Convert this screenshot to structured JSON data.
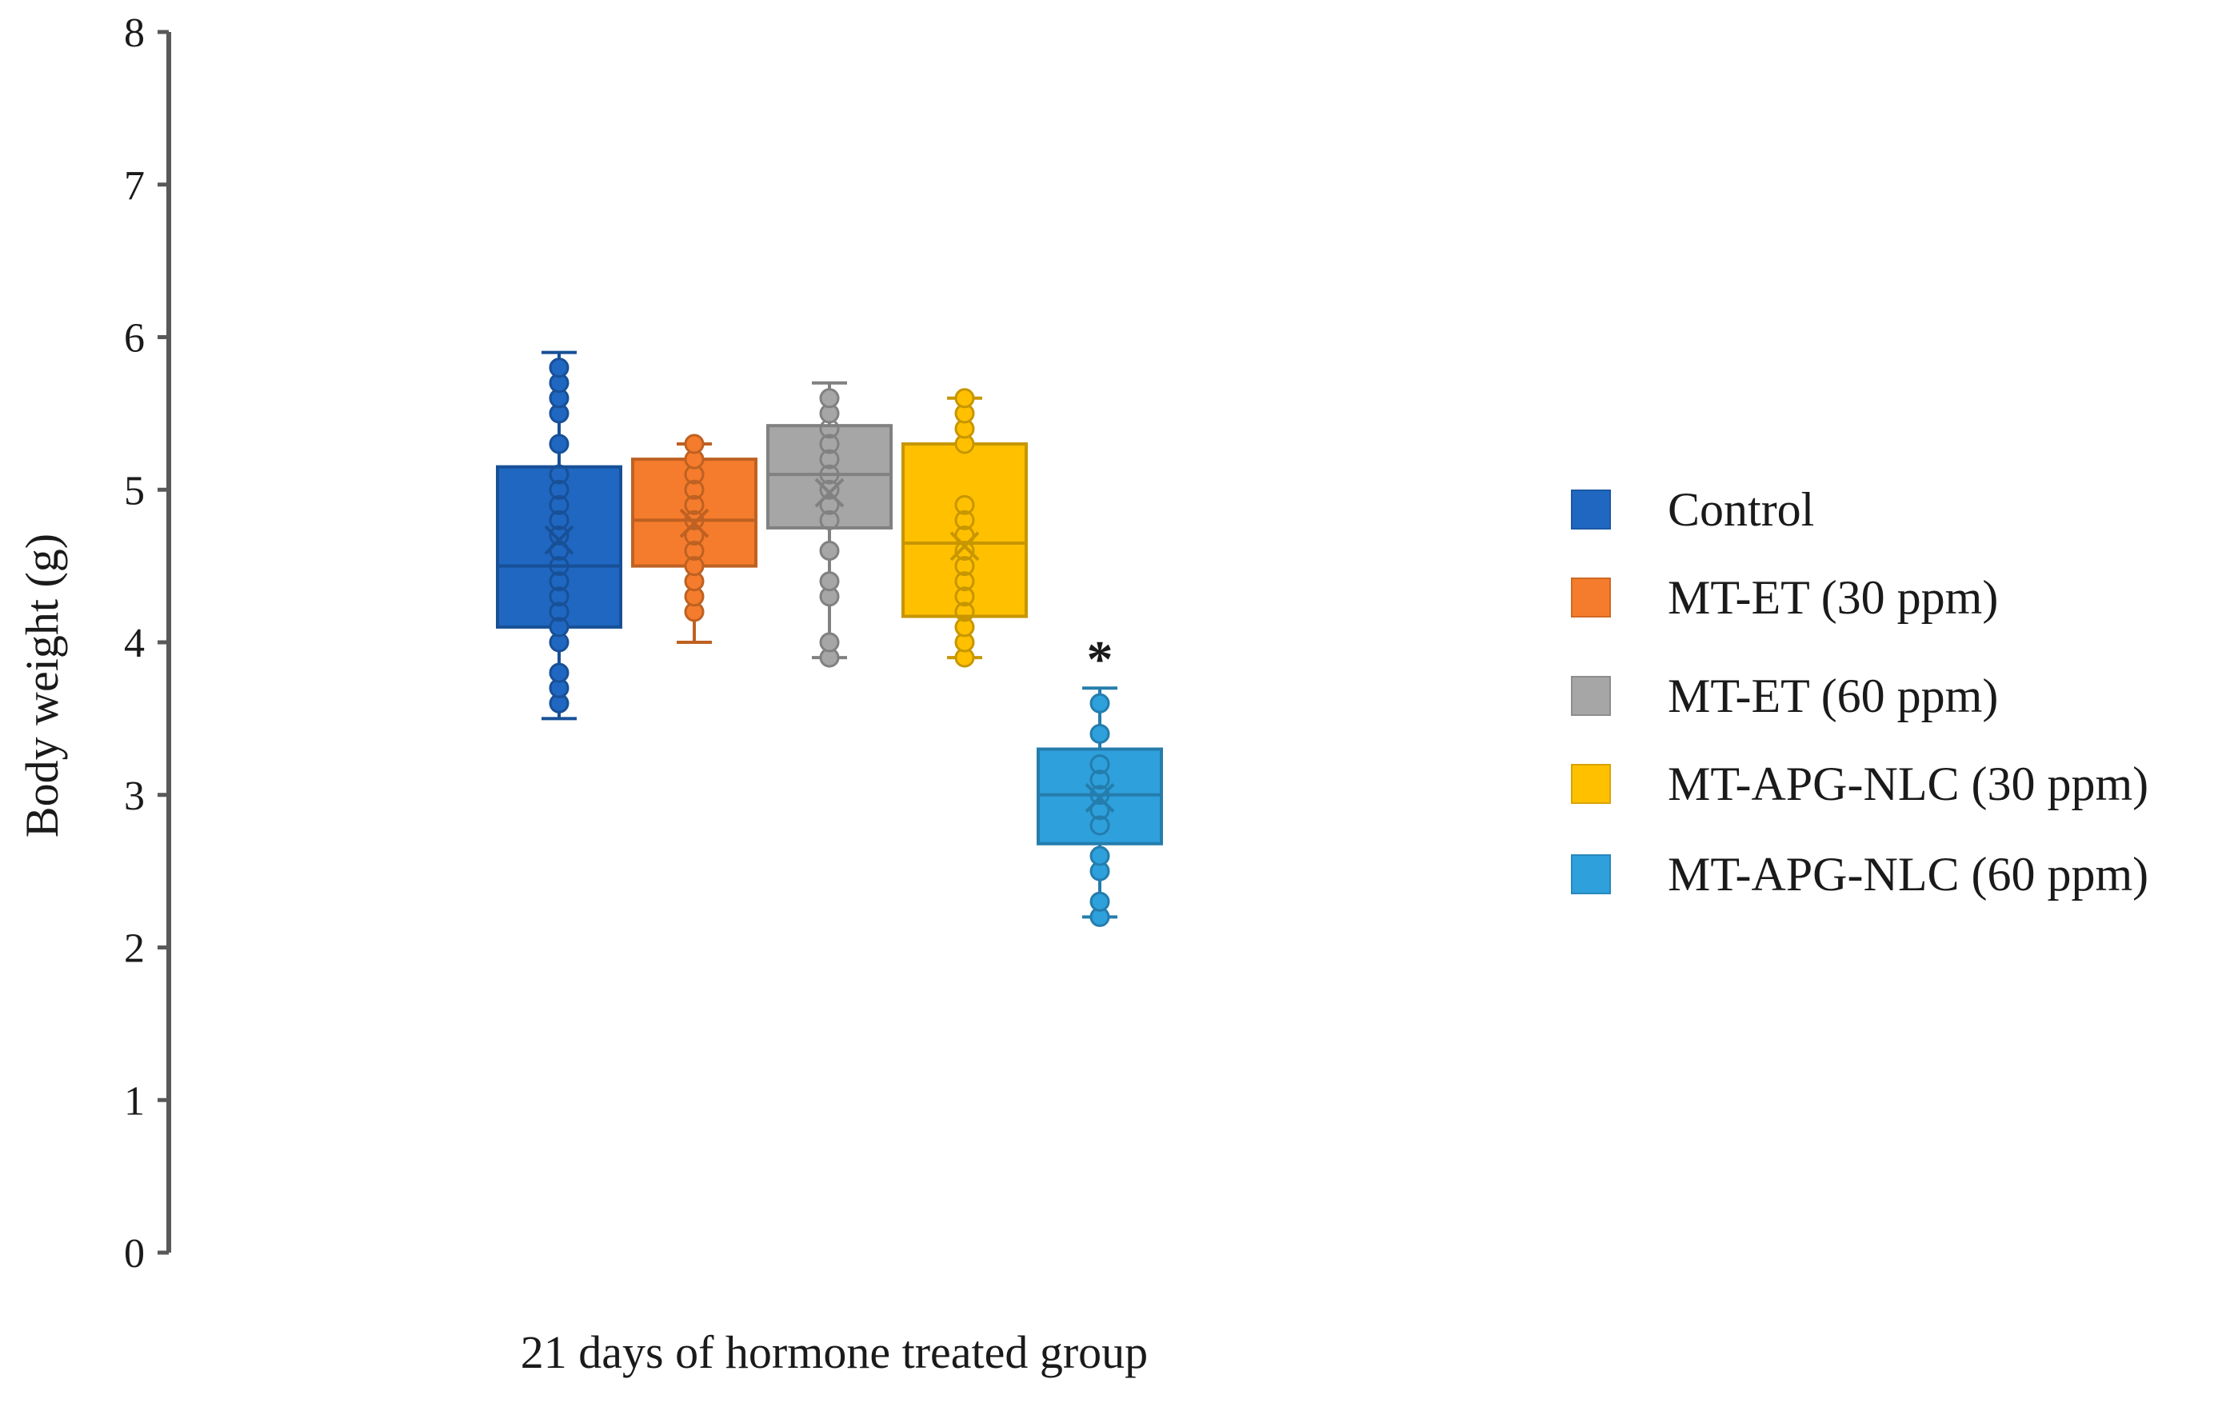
{
  "chart_data": {
    "type": "box",
    "title": "",
    "xlabel": "21 days of hormone treated group",
    "ylabel": "Body weight  (g)",
    "ylim": [
      0,
      8
    ],
    "yticks": [
      "0",
      "1",
      "2",
      "3",
      "4",
      "5",
      "6",
      "7",
      "8"
    ],
    "grid": false,
    "legend_position": "right",
    "series": [
      {
        "name": "Control",
        "color": "#1f67c1",
        "min": 3.5,
        "q1": 4.1,
        "median": 4.5,
        "q3": 5.15,
        "max": 5.9,
        "mean": 4.67,
        "points": [
          3.6,
          3.7,
          3.8,
          4.0,
          4.1,
          4.2,
          4.3,
          4.4,
          4.5,
          4.6,
          4.7,
          4.8,
          4.9,
          5.0,
          5.1,
          5.3,
          5.5,
          5.6,
          5.7,
          5.8
        ],
        "significance": ""
      },
      {
        "name": "MT-ET (30 ppm)",
        "color": "#f47c2c",
        "min": 4.0,
        "q1": 4.5,
        "median": 4.8,
        "q3": 5.2,
        "max": 5.3,
        "mean": 4.78,
        "points": [
          4.2,
          4.3,
          4.4,
          4.5,
          4.6,
          4.7,
          4.8,
          4.9,
          5.0,
          5.1,
          5.2,
          5.3
        ],
        "significance": ""
      },
      {
        "name": "MT-ET (60 ppm)",
        "color": "#a6a6a6",
        "min": 3.9,
        "q1": 4.75,
        "median": 5.1,
        "q3": 5.42,
        "max": 5.7,
        "mean": 4.98,
        "points": [
          3.9,
          4.0,
          4.3,
          4.4,
          4.6,
          4.8,
          4.9,
          5.0,
          5.1,
          5.2,
          5.3,
          5.4,
          5.5,
          5.6
        ],
        "significance": ""
      },
      {
        "name": "MT-APG-NLC (30 ppm)",
        "color": "#ffc000",
        "min": 3.9,
        "q1": 4.17,
        "median": 4.65,
        "q3": 5.3,
        "max": 5.6,
        "mean": 4.63,
        "points": [
          3.9,
          4.0,
          4.1,
          4.2,
          4.3,
          4.4,
          4.5,
          4.6,
          4.7,
          4.8,
          4.9,
          5.3,
          5.4,
          5.5,
          5.6
        ],
        "significance": ""
      },
      {
        "name": "MT-APG-NLC (60 ppm)",
        "color": "#2ea0dc",
        "min": 2.2,
        "q1": 2.68,
        "median": 3.0,
        "q3": 3.3,
        "max": 3.7,
        "mean": 2.98,
        "points": [
          2.2,
          2.3,
          2.5,
          2.6,
          2.8,
          2.9,
          3.0,
          3.1,
          3.2,
          3.4,
          3.6
        ],
        "significance": "*"
      }
    ]
  }
}
